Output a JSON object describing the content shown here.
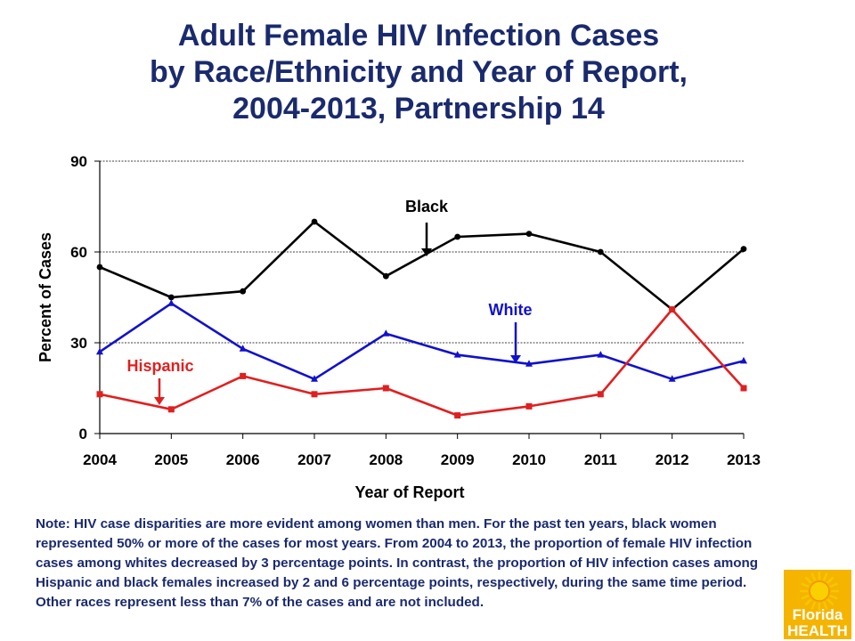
{
  "title_lines": [
    "Adult Female HIV Infection Cases",
    "by Race/Ethnicity and Year of Report,",
    "2004-2013, Partnership 14"
  ],
  "chart_data": {
    "type": "line",
    "x": [
      "2004",
      "2005",
      "2006",
      "2007",
      "2008",
      "2009",
      "2010",
      "2011",
      "2012",
      "2013"
    ],
    "xlabel": "Year of Report",
    "ylabel": "Percent of Cases",
    "ylim": [
      0,
      90
    ],
    "yticks": [
      0,
      30,
      60,
      90
    ],
    "grid": true,
    "series": [
      {
        "name": "Black",
        "color": "#000000",
        "marker": "circle",
        "values": [
          55,
          45,
          47,
          70,
          52,
          65,
          66,
          60,
          41,
          61
        ]
      },
      {
        "name": "White",
        "color": "#1111cc",
        "marker": "triangle",
        "values": [
          27,
          43,
          28,
          18,
          33,
          26,
          23,
          26,
          18,
          24
        ]
      },
      {
        "name": "Hispanic",
        "color": "#e02020",
        "marker": "square",
        "values": [
          13,
          8,
          19,
          13,
          15,
          6,
          9,
          13,
          41,
          15
        ]
      }
    ]
  },
  "note": "Note: HIV case disparities are more evident among women than men.  For the past ten years, black women represented 50% or more of the cases for most years. From 2004 to 2013, the proportion of female HIV infection cases among whites decreased by 3 percentage points.  In contrast, the proportion of HIV infection cases among Hispanic and black females increased by 2 and 6 percentage points, respectively, during the same time period. Other races represent less than 7% of the cases and are not included.",
  "logo": {
    "line1": "Florida",
    "line2": "HEALTH",
    "colors": {
      "sun": "#f5a800",
      "rays": "#f7c600",
      "text": "#ffffff",
      "bg": "#f5b400"
    }
  }
}
